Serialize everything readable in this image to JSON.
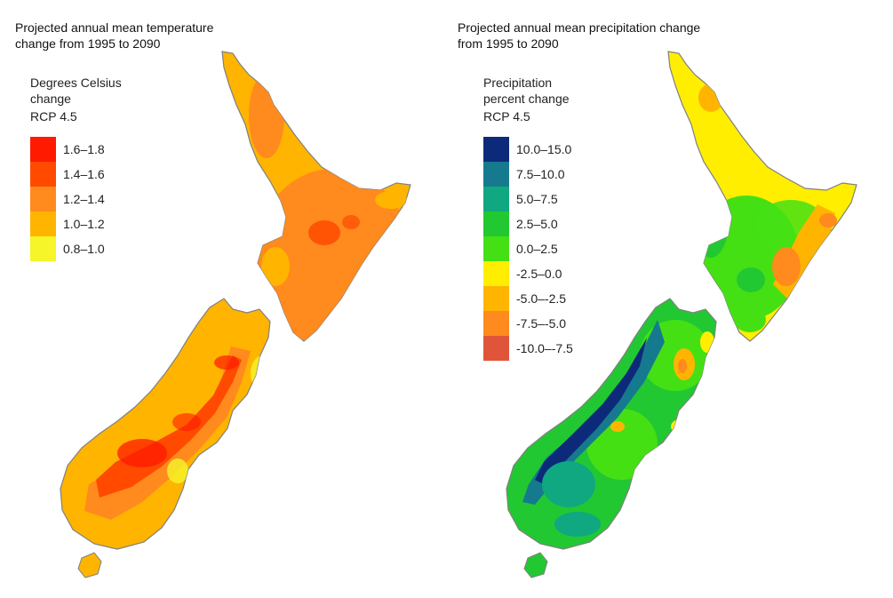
{
  "temperature_map": {
    "title_line1": "Projected annual mean temperature",
    "title_line2": "change from 1995 to 2090",
    "legend_heading_line1": "Degrees Celsius",
    "legend_heading_line2": "change",
    "scenario": "RCP 4.5",
    "legend": [
      {
        "label": "1.6–1.8",
        "color": "#ff1a00"
      },
      {
        "label": "1.4–1.6",
        "color": "#ff4a00"
      },
      {
        "label": "1.2–1.4",
        "color": "#ff8a1e"
      },
      {
        "label": "1.0–1.2",
        "color": "#ffb400"
      },
      {
        "label": "0.8–1.0",
        "color": "#f5f52a"
      }
    ]
  },
  "precipitation_map": {
    "title_line1": "Projected annual mean precipitation change",
    "title_line2": "from 1995 to 2090",
    "legend_heading_line1": "Precipitation",
    "legend_heading_line2": "percent change",
    "scenario": "RCP 4.5",
    "legend": [
      {
        "label": "10.0–15.0",
        "color": "#0d2a7a"
      },
      {
        "label": "7.5–10.0",
        "color": "#157a8e"
      },
      {
        "label": "5.0–7.5",
        "color": "#10a880"
      },
      {
        "label": "2.5–5.0",
        "color": "#22c832"
      },
      {
        "label": "0.0–2.5",
        "color": "#44e014"
      },
      {
        "label": "-2.5–0.0",
        "color": "#ffee00"
      },
      {
        "label": "-5.0–-2.5",
        "color": "#ffb400"
      },
      {
        "label": "-7.5–-5.0",
        "color": "#ff8a1e"
      },
      {
        "label": "-10.0–-7.5",
        "color": "#e0553a"
      }
    ]
  }
}
